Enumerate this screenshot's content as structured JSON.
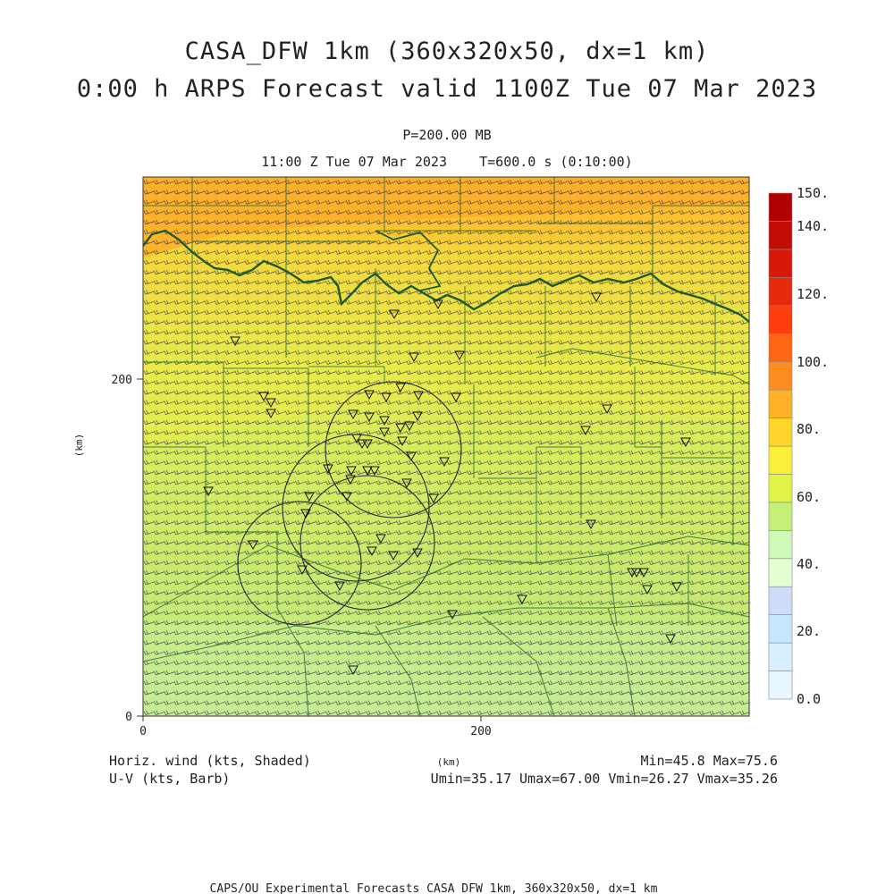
{
  "header": {
    "title_line1": "CASA_DFW 1km (360x320x50, dx=1 km)",
    "title_line2": "0:00 h ARPS Forecast valid 1100Z Tue 07 Mar 2023",
    "level": "P=200.00 MB",
    "valid_time": "11:00 Z Tue 07 Mar 2023    T=600.0 s (0:10:00)"
  },
  "axes": {
    "x_ticks": [
      "0",
      "200"
    ],
    "y_ticks": [
      "0",
      "200"
    ],
    "x_label": "(km)",
    "y_label": "(km)"
  },
  "colorbar": {
    "labels": [
      "0.0",
      "20.",
      "40.",
      "60.",
      "80.",
      "100.",
      "120.",
      "140.",
      "150."
    ],
    "colors": [
      "#e8f6ff",
      "#d7efff",
      "#c6e6ff",
      "#cfdcf7",
      "#e3ffd2",
      "#d0f8b8",
      "#c4f07a",
      "#e0f545",
      "#fbee3a",
      "#ffd52a",
      "#ffb128",
      "#ff8c1e",
      "#ff6612",
      "#ff3d0c",
      "#e82a0c",
      "#d81808",
      "#c40c06",
      "#b00000"
    ]
  },
  "footer": {
    "left_line1": "Horiz. wind (kts, Shaded)",
    "left_line2": "U-V (kts, Barb)",
    "right_line1": "Min=45.8 Max=75.6",
    "right_line2": "Umin=35.17 Umax=67.00 Vmin=26.27 Vmax=35.26",
    "units": "(km)",
    "credit": "CAPS/OU Experimental Forecasts  CASA DFW 1km, 360x320x50, dx=1 km"
  },
  "field": {
    "min": 45.8,
    "max": 75.6,
    "u_range": [
      35.17,
      67.0
    ],
    "v_range": [
      26.27,
      35.26
    ]
  }
}
